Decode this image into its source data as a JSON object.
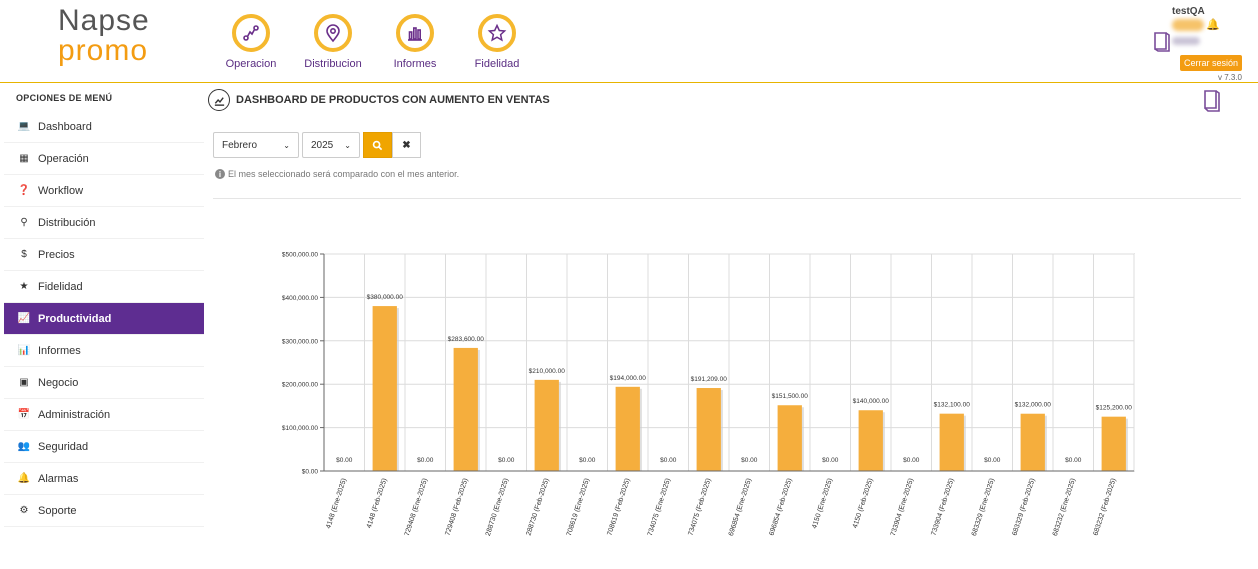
{
  "brand": {
    "line1": "Napse",
    "line2": "promo"
  },
  "topnav": [
    {
      "label": "Operacion",
      "icon": "route-icon"
    },
    {
      "label": "Distribucion",
      "icon": "map-pin-icon"
    },
    {
      "label": "Informes",
      "icon": "bar-chart-icon"
    },
    {
      "label": "Fidelidad",
      "icon": "star-icon"
    }
  ],
  "user": {
    "name": "testQA",
    "logout_label": "Cerrar sesión",
    "version": "v 7.3.0"
  },
  "sidebar": {
    "title": "OPCIONES DE MENÚ",
    "items": [
      {
        "label": "Dashboard",
        "icon": "laptop-icon"
      },
      {
        "label": "Operación",
        "icon": "grid-icon"
      },
      {
        "label": "Workflow",
        "icon": "question-circle-icon"
      },
      {
        "label": "Distribución",
        "icon": "map-marker-icon"
      },
      {
        "label": "Precios",
        "icon": "dollar-icon"
      },
      {
        "label": "Fidelidad",
        "icon": "star-icon"
      },
      {
        "label": "Productividad",
        "icon": "line-chart-icon",
        "active": true
      },
      {
        "label": "Informes",
        "icon": "bar-chart-icon"
      },
      {
        "label": "Negocio",
        "icon": "building-icon"
      },
      {
        "label": "Administración",
        "icon": "calendar-check-icon"
      },
      {
        "label": "Seguridad",
        "icon": "users-icon"
      },
      {
        "label": "Alarmas",
        "icon": "bell-icon"
      },
      {
        "label": "Soporte",
        "icon": "gear-icon"
      }
    ]
  },
  "page": {
    "title": "DASHBOARD DE PRODUCTOS CON AUMENTO EN VENTAS",
    "month_value": "Febrero",
    "year_value": "2025",
    "hint": "El mes seleccionado será comparado con el mes anterior."
  },
  "chart_data": {
    "type": "bar",
    "title": "",
    "xlabel": "",
    "ylabel": "",
    "ylim": [
      0,
      500000
    ],
    "yticks": [
      "$0.00",
      "$100,000.00",
      "$200,000.00",
      "$300,000.00",
      "$400,000.00",
      "$500,000.00"
    ],
    "ytick_values": [
      0,
      100000,
      200000,
      300000,
      400000,
      500000
    ],
    "grid": true,
    "bar_color": "#f5ae3d",
    "categories": [
      "4148 (Ene-2025)",
      "4148 (Feb-2025)",
      "729408 (Ene-2025)",
      "729408 (Feb-2025)",
      "288730 (Ene-2025)",
      "288730 (Feb-2025)",
      "708619 (Ene-2025)",
      "708619 (Feb-2025)",
      "734075 (Ene-2025)",
      "734075 (Feb-2025)",
      "696854 (Ene-2025)",
      "696854 (Feb-2025)",
      "4150 (Ene-2025)",
      "4150 (Feb-2025)",
      "733904 (Ene-2025)",
      "733904 (Feb-2025)",
      "683329 (Ene-2025)",
      "683329 (Feb-2025)",
      "683232 (Ene-2025)",
      "683232 (Feb-2025)"
    ],
    "values": [
      0,
      380000,
      0,
      283600,
      0,
      210000,
      0,
      194000,
      0,
      191209,
      0,
      151500,
      0,
      140000,
      0,
      132100,
      0,
      132000,
      0,
      125200
    ],
    "data_labels": [
      "$0.00",
      "$380,000.00",
      "$0.00",
      "$283,600.00",
      "$0.00",
      "$210,000.00",
      "$0.00",
      "$194,000.00",
      "$0.00",
      "$191,209.00",
      "$0.00",
      "$151,500.00",
      "$0.00",
      "$140,000.00",
      "$0.00",
      "$132,100.00",
      "$0.00",
      "$132,000.00",
      "$0.00",
      "$125,200.00"
    ]
  }
}
